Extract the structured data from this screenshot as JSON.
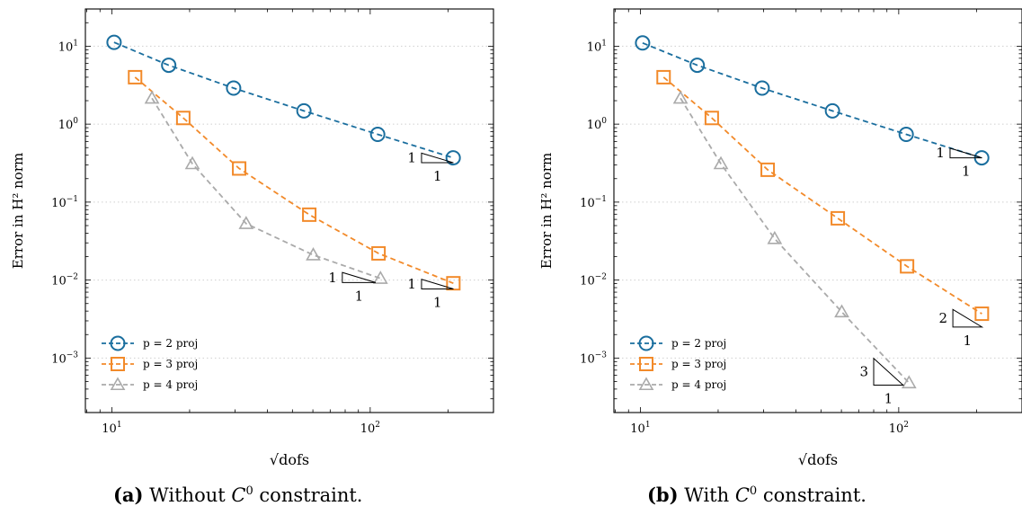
{
  "chart_data": [
    {
      "type": "line",
      "panel_label": "(a)",
      "caption_prefix": "Without",
      "caption_var": "C",
      "caption_sup": "0",
      "caption_suffix": "constraint.",
      "xlabel": "√dofs",
      "ylabel": "Error in H² norm",
      "xscale": "log",
      "yscale": "log",
      "xlim": [
        7.9,
        300
      ],
      "ylim": [
        0.0002,
        30
      ],
      "x_ticks": [
        {
          "value": 10,
          "label": "10¹"
        },
        {
          "value": 100,
          "label": "10²"
        }
      ],
      "y_ticks": [
        {
          "value": 10,
          "label": "10¹"
        },
        {
          "value": 1,
          "label": "10⁰"
        },
        {
          "value": 0.1,
          "label": "10⁻¹"
        },
        {
          "value": 0.01,
          "label": "10⁻²"
        },
        {
          "value": 0.001,
          "label": "10⁻³"
        }
      ],
      "grid": "y-major dotted",
      "legend_position": "bottom-left",
      "series": [
        {
          "name": "p = 2 proj",
          "marker": "circle",
          "color": "#1a6e9e",
          "x": [
            10.2,
            16.6,
            29.6,
            55.4,
            106.9,
            209.5
          ],
          "y": [
            11.2,
            5.7,
            2.9,
            1.48,
            0.74,
            0.37
          ]
        },
        {
          "name": "p = 3 proj",
          "marker": "square",
          "color": "#f28a2a",
          "x": [
            12.3,
            18.9,
            31.1,
            58.1,
            107.7,
            209.8
          ],
          "y": [
            4.0,
            1.2,
            0.27,
            0.069,
            0.022,
            0.0091
          ]
        },
        {
          "name": "p = 4 proj",
          "marker": "triangle",
          "color": "#aaaaaa",
          "x": [
            14.3,
            20.5,
            33.1,
            60.2,
            109.6
          ],
          "y": [
            2.15,
            0.31,
            0.053,
            0.021,
            0.0105
          ]
        }
      ],
      "slope_triangles": [
        {
          "x0": 158,
          "x1": 210,
          "y": 0.32,
          "rise_label": "1",
          "run_label": "1",
          "slope": 1,
          "color": "#000000"
        },
        {
          "x0": 78,
          "x1": 105,
          "y": 0.0093,
          "rise_label": "1",
          "run_label": "1",
          "slope": 1,
          "color": "#000000"
        },
        {
          "x0": 158,
          "x1": 210,
          "y": 0.0077,
          "rise_label": "1",
          "run_label": "1",
          "slope": 1,
          "color": "#000000"
        }
      ]
    },
    {
      "type": "line",
      "panel_label": "(b)",
      "caption_prefix": "With",
      "caption_var": "C",
      "caption_sup": "0",
      "caption_suffix": "constraint.",
      "xlabel": "√dofs",
      "ylabel": "Error in H² norm",
      "xscale": "log",
      "yscale": "log",
      "xlim": [
        7.9,
        300
      ],
      "ylim": [
        0.0002,
        30
      ],
      "x_ticks": [
        {
          "value": 10,
          "label": "10¹"
        },
        {
          "value": 100,
          "label": "10²"
        }
      ],
      "y_ticks": [
        {
          "value": 10,
          "label": "10¹"
        },
        {
          "value": 1,
          "label": "10⁰"
        },
        {
          "value": 0.1,
          "label": "10⁻¹"
        },
        {
          "value": 0.01,
          "label": "10⁻²"
        },
        {
          "value": 0.001,
          "label": "10⁻³"
        }
      ],
      "grid": "y-major dotted",
      "legend_position": "bottom-left",
      "series": [
        {
          "name": "p = 2 proj",
          "marker": "circle",
          "color": "#1a6e9e",
          "x": [
            10.2,
            16.6,
            29.6,
            55.4,
            106.9,
            209.5
          ],
          "y": [
            11.0,
            5.7,
            2.9,
            1.48,
            0.74,
            0.37
          ]
        },
        {
          "name": "p = 3 proj",
          "marker": "square",
          "color": "#f28a2a",
          "x": [
            12.3,
            18.9,
            31.1,
            58.1,
            107.7,
            209.8
          ],
          "y": [
            4.0,
            1.2,
            0.26,
            0.062,
            0.015,
            0.0037
          ]
        },
        {
          "name": "p = 4 proj",
          "marker": "triangle",
          "color": "#aaaaaa",
          "x": [
            14.3,
            20.5,
            33.1,
            60.2,
            109.6
          ],
          "y": [
            2.15,
            0.31,
            0.034,
            0.0039,
            0.00048
          ]
        }
      ],
      "slope_triangles": [
        {
          "x0": 158,
          "x1": 210,
          "y": 0.37,
          "rise_label": "1",
          "run_label": "1",
          "slope": 1,
          "color": "#000000"
        },
        {
          "x0": 162,
          "x1": 210,
          "y": 0.0025,
          "rise_label": "2",
          "run_label": "1",
          "slope": 2,
          "color": "#000000"
        },
        {
          "x0": 80,
          "x1": 104,
          "y": 0.00045,
          "rise_label": "3",
          "run_label": "1",
          "slope": 3,
          "color": "#000000"
        }
      ]
    }
  ]
}
